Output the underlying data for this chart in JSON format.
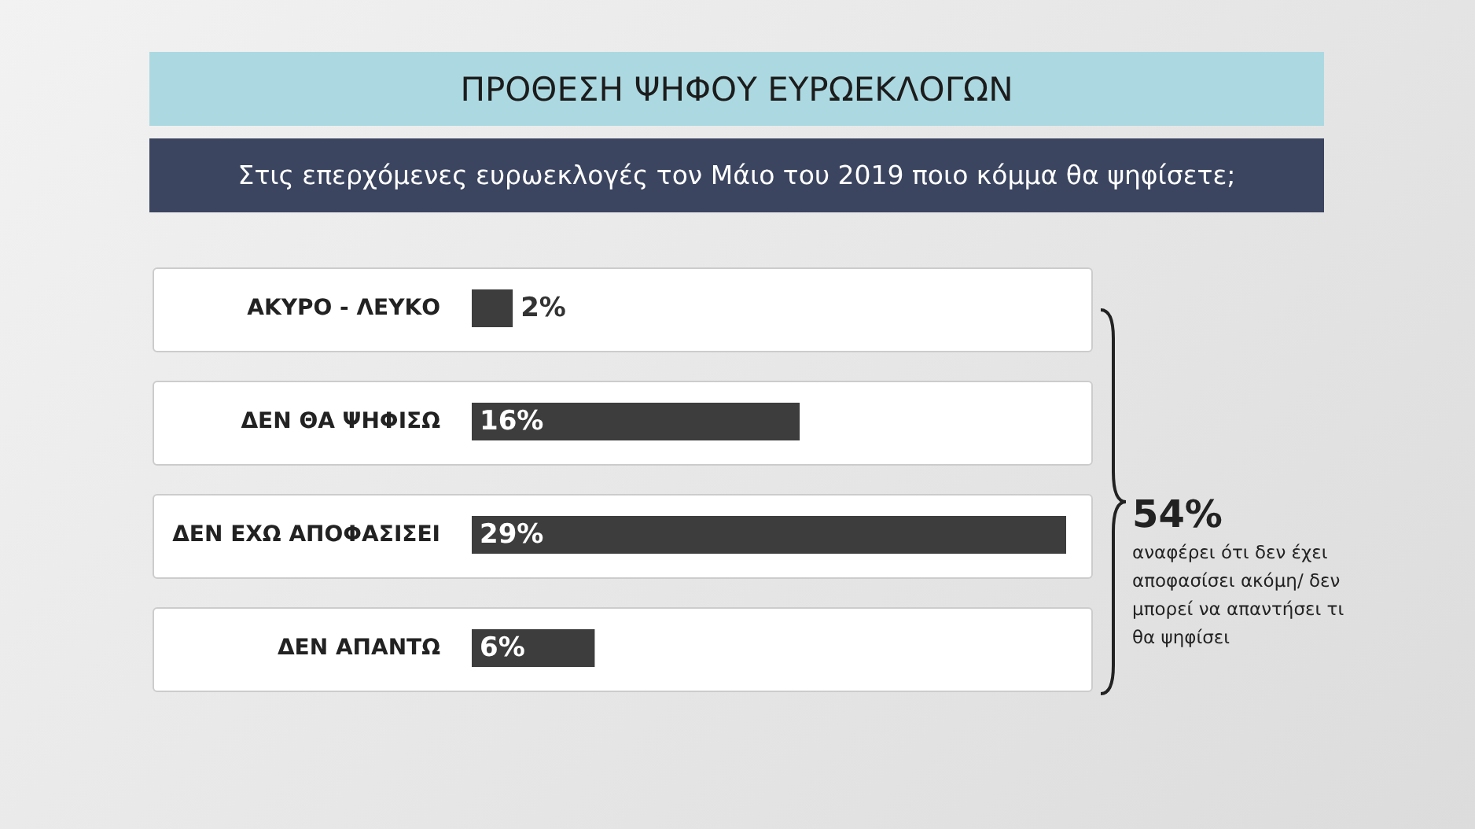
{
  "chart_data": {
    "type": "bar",
    "orientation": "horizontal",
    "title": "ΠΡΟΘΕΣΗ ΨΗΦΟΥ ΕΥΡΩΕΚΛΟΓΩΝ",
    "subtitle": "Στις επερχόμενες ευρωεκλογές τον Μάιο του 2019 ποιο κόμμα θα ψηφίσετε;",
    "categories": [
      "ΑΚΥΡΟ - ΛΕΥΚΟ",
      "ΔΕΝ ΘΑ ΨΗΦΙΣΩ",
      "ΔΕΝ ΕΧΩ ΑΠΟΦΑΣΙΣΕΙ",
      "ΔΕΝ ΑΠΑΝΤΩ"
    ],
    "values": [
      2,
      16,
      29,
      6
    ],
    "value_labels": [
      "2%",
      "16%",
      "29%",
      "6%"
    ],
    "color": "#3d3d3d",
    "annotations": [
      "54%",
      "αναφέρει ότι δεν έχει αποφασίσει ακόμη/ δεν μπορεί να απαντήσει τι θα ψηφίσει"
    ]
  }
}
